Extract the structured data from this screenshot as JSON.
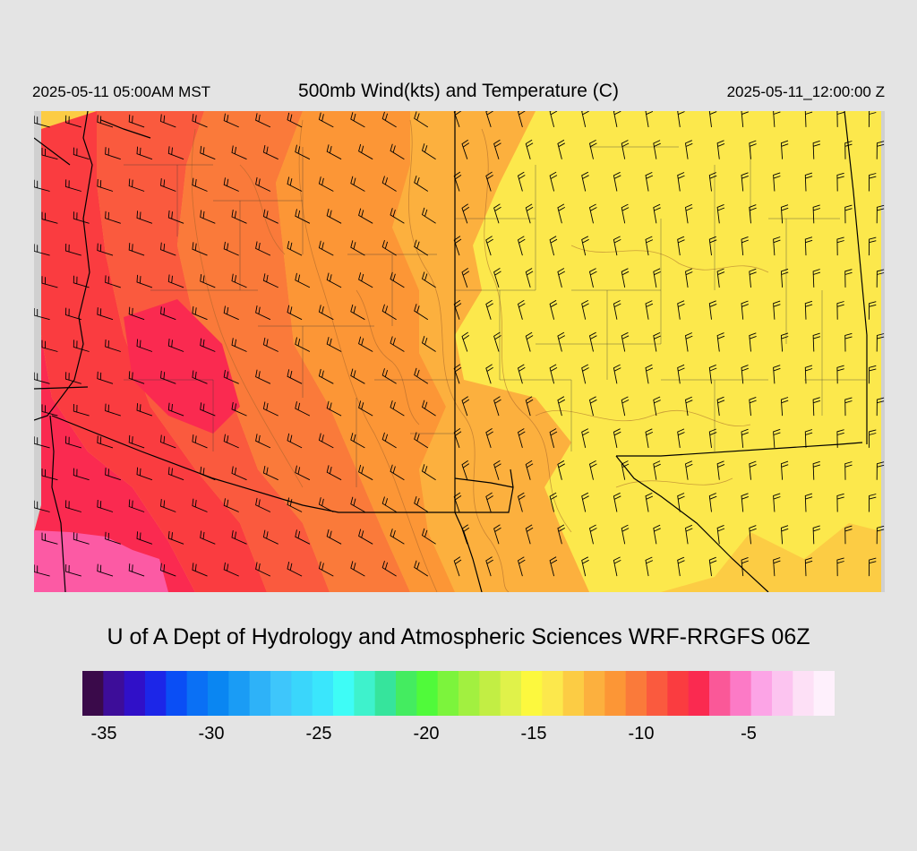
{
  "header": {
    "local_time": "2025-05-11 05:00AM MST",
    "title": "500mb Wind(kts) and Temperature (C)",
    "valid_time": "2025-05-11_12:00:00 Z"
  },
  "credit": "U of A Dept of Hydrology and Atmospheric Sciences WRF-RRGFS 06Z",
  "colorbar": {
    "min": -36,
    "max": -1,
    "colors": [
      "#3a0a4a",
      "#3d0d99",
      "#3010c8",
      "#1c26e8",
      "#0a4ef5",
      "#0a70f5",
      "#0a86f2",
      "#1a9cf5",
      "#2eb2f8",
      "#3ec6fb",
      "#3ad6fb",
      "#3ae6fc",
      "#3efcf6",
      "#3ef2cc",
      "#36e49c",
      "#44ec60",
      "#50fa3a",
      "#7cf43c",
      "#a2f040",
      "#c2ee44",
      "#e0f24a",
      "#fcf83e",
      "#fce84c",
      "#fccc44",
      "#fcb03e",
      "#fc9636",
      "#fa7a3a",
      "#fa5a3e",
      "#fa3c40",
      "#fa2a50",
      "#fa5898",
      "#fc7ac6",
      "#fca4e6",
      "#fcc4f0",
      "#fde0f6",
      "#fef0fc"
    ],
    "ticks": [
      {
        "value": -35,
        "label": "-35"
      },
      {
        "value": -30,
        "label": "-30"
      },
      {
        "value": -25,
        "label": "-25"
      },
      {
        "value": -20,
        "label": "-20"
      },
      {
        "value": -15,
        "label": "-15"
      },
      {
        "value": -10,
        "label": "-10"
      },
      {
        "value": -5,
        "label": "-5"
      }
    ]
  },
  "map": {
    "background": "#d0d0d0",
    "temperature_zone_colors": [
      "#fc5aa4",
      "#fa2a50",
      "#fa3c40",
      "#fa5a3e",
      "#fa7a3a",
      "#fc9636",
      "#fcb03e",
      "#fccc44",
      "#fce84c"
    ],
    "zones": [
      {
        "name": "pink-cold-pocket",
        "temp_c": -5,
        "color": "#fc5aa4"
      },
      {
        "name": "red-core",
        "temp_c": -7,
        "color": "#fa2a50"
      },
      {
        "name": "red",
        "temp_c": -8,
        "color": "#fa3c40"
      },
      {
        "name": "red-orange",
        "temp_c": -10,
        "color": "#fa5a3e"
      },
      {
        "name": "orange",
        "temp_c": -11,
        "color": "#fa7a3a"
      },
      {
        "name": "orange-light",
        "temp_c": -12,
        "color": "#fc9636"
      },
      {
        "name": "gold",
        "temp_c": -13,
        "color": "#fcb03e"
      },
      {
        "name": "yellow-orange",
        "temp_c": -14,
        "color": "#fccc44"
      },
      {
        "name": "yellow",
        "temp_c": -15,
        "color": "#fce84c"
      }
    ]
  }
}
